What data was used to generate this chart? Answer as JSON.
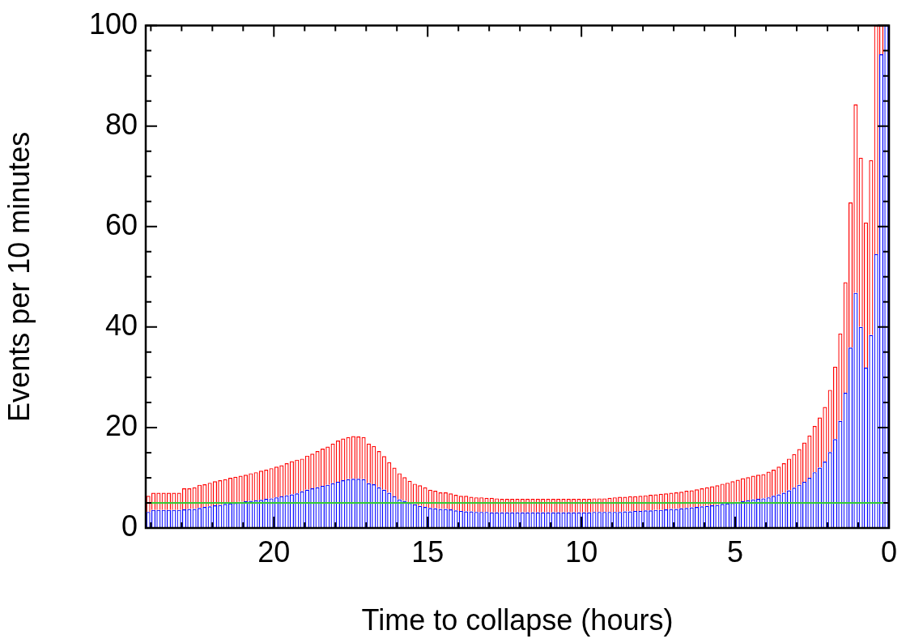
{
  "chart_data": {
    "type": "bar",
    "xlabel": "Time to collapse (hours)",
    "ylabel": "Events per 10 minutes",
    "stacked": true,
    "x": [
      0.0833,
      0.25,
      0.4167,
      0.5833,
      0.75,
      0.9167,
      1.0833,
      1.25,
      1.4167,
      1.5833,
      1.75,
      1.9167,
      2.0833,
      2.25,
      2.4167,
      2.5833,
      2.75,
      2.9167,
      3.0833,
      3.25,
      3.4167,
      3.5833,
      3.75,
      3.9167,
      4.0833,
      4.25,
      4.4167,
      4.5833,
      4.75,
      4.9167,
      5.0833,
      5.25,
      5.4167,
      5.5833,
      5.75,
      5.9167,
      6.0833,
      6.25,
      6.4167,
      6.5833,
      6.75,
      6.9167,
      7.0833,
      7.25,
      7.4167,
      7.5833,
      7.75,
      7.9167,
      8.0833,
      8.25,
      8.4167,
      8.5833,
      8.75,
      8.9167,
      9.0833,
      9.25,
      9.4167,
      9.5833,
      9.75,
      9.9167,
      10.0833,
      10.25,
      10.4167,
      10.5833,
      10.75,
      10.9167,
      11.0833,
      11.25,
      11.4167,
      11.5833,
      11.75,
      11.9167,
      12.0833,
      12.25,
      12.4167,
      12.5833,
      12.75,
      12.9167,
      13.0833,
      13.25,
      13.4167,
      13.5833,
      13.75,
      13.9167,
      14.0833,
      14.25,
      14.4167,
      14.5833,
      14.75,
      14.9167,
      15.0833,
      15.25,
      15.4167,
      15.5833,
      15.75,
      15.9167,
      16.0833,
      16.25,
      16.4167,
      16.5833,
      16.75,
      16.9167,
      17.0833,
      17.25,
      17.4167,
      17.5833,
      17.75,
      17.9167,
      18.0833,
      18.25,
      18.4167,
      18.5833,
      18.75,
      18.9167,
      19.0833,
      19.25,
      19.4167,
      19.5833,
      19.75,
      19.9167,
      20.0833,
      20.25,
      20.4167,
      20.5833,
      20.75,
      20.9167,
      21.0833,
      21.25,
      21.4167,
      21.5833,
      21.75,
      21.9167,
      22.0833,
      22.25,
      22.4167,
      22.5833,
      22.75,
      22.9167,
      23.0833,
      23.25,
      23.4167,
      23.5833,
      23.75,
      23.9167,
      24.0833
    ],
    "series": [
      {
        "color": "#0000ff",
        "values": [
          100,
          94.3,
          54.5,
          38.4,
          31.9,
          40.0,
          46.8,
          35.9,
          26.9,
          21.3,
          17.7,
          15.1,
          13.2,
          12.0,
          11.1,
          10.0,
          9.2,
          8.6,
          8.0,
          7.5,
          7.0,
          6.7,
          6.4,
          6.1,
          5.9,
          5.8,
          5.7,
          5.5,
          5.3,
          5.2,
          5.0,
          4.9,
          4.8,
          4.6,
          4.5,
          4.4,
          4.3,
          4.2,
          4.1,
          4.0,
          3.9,
          3.8,
          3.8,
          3.7,
          3.6,
          3.6,
          3.5,
          3.5,
          3.4,
          3.4,
          3.3,
          3.3,
          3.2,
          3.2,
          3.2,
          3.2,
          3.2,
          3.2,
          3.1,
          3.1,
          3.1,
          3.1,
          3.1,
          3.1,
          3.1,
          3.1,
          3.1,
          3.1,
          3.1,
          3.1,
          3.1,
          3.1,
          3.1,
          3.1,
          3.1,
          3.1,
          3.1,
          3.1,
          3.2,
          3.2,
          3.2,
          3.3,
          3.3,
          3.4,
          3.5,
          3.7,
          3.8,
          3.8,
          3.9,
          4.0,
          4.2,
          4.4,
          4.7,
          5.0,
          5.4,
          5.7,
          6.3,
          7.0,
          7.6,
          8.1,
          8.7,
          8.9,
          9.7,
          9.8,
          9.8,
          9.7,
          9.5,
          9.2,
          8.9,
          8.6,
          8.4,
          8.1,
          7.9,
          7.6,
          7.3,
          6.9,
          6.7,
          6.5,
          6.3,
          6.1,
          5.9,
          5.8,
          5.6,
          5.5,
          5.4,
          5.3,
          5.2,
          5.0,
          4.9,
          4.8,
          4.6,
          4.5,
          4.3,
          4.2,
          4.0,
          3.8,
          3.8,
          3.7,
          3.6,
          3.6,
          3.6,
          3.6,
          3.6,
          3.6,
          3.2
        ]
      },
      {
        "color": "#ff0000",
        "values": [
          0,
          5.7,
          45.5,
          34.8,
          28.9,
          33.7,
          37.5,
          28.9,
          22.0,
          17.4,
          14.4,
          12.4,
          10.9,
          10.0,
          9.2,
          8.4,
          7.8,
          7.1,
          6.7,
          6.3,
          5.9,
          5.5,
          5.2,
          5.1,
          4.8,
          4.8,
          4.7,
          4.6,
          4.6,
          4.4,
          4.3,
          4.1,
          4.0,
          3.9,
          3.8,
          3.7,
          3.6,
          3.5,
          3.4,
          3.4,
          3.3,
          3.3,
          3.2,
          3.2,
          3.2,
          3.1,
          3.1,
          3.0,
          3.0,
          2.9,
          3.0,
          2.9,
          3.0,
          2.9,
          2.8,
          2.7,
          2.7,
          2.7,
          2.7,
          2.7,
          2.7,
          2.7,
          2.7,
          2.7,
          2.7,
          2.7,
          2.7,
          2.7,
          2.7,
          2.7,
          2.7,
          2.7,
          2.7,
          2.7,
          2.7,
          2.7,
          2.8,
          2.9,
          2.8,
          2.9,
          2.9,
          2.9,
          3.1,
          3.0,
          3.1,
          3.2,
          3.3,
          3.3,
          3.5,
          3.6,
          3.9,
          4.1,
          4.1,
          4.4,
          4.7,
          5.2,
          5.7,
          6.1,
          6.7,
          7.2,
          7.6,
          7.9,
          8.4,
          8.4,
          8.5,
          8.4,
          8.3,
          8.2,
          7.9,
          7.6,
          7.4,
          7.2,
          6.9,
          6.8,
          6.5,
          6.7,
          6.6,
          6.4,
          6.2,
          6.1,
          6.0,
          5.8,
          5.8,
          5.6,
          5.5,
          5.3,
          5.2,
          5.2,
          5.1,
          4.9,
          4.9,
          4.8,
          4.7,
          4.5,
          4.6,
          4.3,
          4.1,
          4.2,
          3.4,
          3.4,
          3.4,
          3.4,
          3.4,
          3.4,
          3.2
        ]
      }
    ],
    "xlim": [
      24.1667,
      0
    ],
    "xticks": [
      {
        "value": 24,
        "label": null
      },
      {
        "value": 23,
        "label": null
      },
      {
        "value": 22,
        "label": null
      },
      {
        "value": 21,
        "label": null
      },
      20,
      {
        "value": 19,
        "label": null
      },
      {
        "value": 18,
        "label": null
      },
      {
        "value": 17,
        "label": null
      },
      {
        "value": 16,
        "label": null
      },
      15,
      {
        "value": 14,
        "label": null
      },
      {
        "value": 13,
        "label": null
      },
      {
        "value": 12,
        "label": null
      },
      {
        "value": 11,
        "label": null
      },
      10,
      {
        "value": 9,
        "label": null
      },
      {
        "value": 8,
        "label": null
      },
      {
        "value": 7,
        "label": null
      },
      {
        "value": 6,
        "label": null
      },
      5,
      {
        "value": 4,
        "label": null
      },
      {
        "value": 3,
        "label": null
      },
      {
        "value": 2,
        "label": null
      },
      {
        "value": 1,
        "label": null
      },
      0
    ],
    "ylim": [
      0,
      100
    ],
    "yticks": [
      0,
      {
        "value": 5,
        "label": null
      },
      {
        "value": 10,
        "label": null
      },
      {
        "value": 15,
        "label": null
      },
      20,
      {
        "value": 25,
        "label": null
      },
      {
        "value": 30,
        "label": null
      },
      {
        "value": 35,
        "label": null
      },
      40,
      {
        "value": 45,
        "label": null
      },
      {
        "value": 50,
        "label": null
      },
      {
        "value": 55,
        "label": null
      },
      60,
      {
        "value": 65,
        "label": null
      },
      {
        "value": 70,
        "label": null
      },
      {
        "value": 75,
        "label": null
      },
      80,
      {
        "value": 85,
        "label": null
      },
      {
        "value": 90,
        "label": null
      },
      {
        "value": 95,
        "label": null
      },
      100
    ],
    "ref_lines": [
      {
        "axis": "y",
        "value": 5,
        "color": "#33cc33"
      }
    ],
    "legend": false
  }
}
